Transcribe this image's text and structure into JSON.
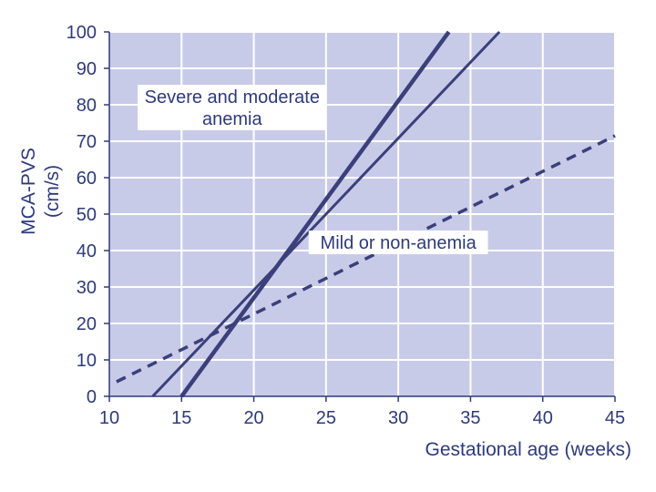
{
  "chart_data": {
    "type": "line",
    "xlabel": "Gestational age (weeks)",
    "ylabel": "MCA-PVS",
    "ylabel_unit": "(cm/s)",
    "xlim": [
      10,
      45
    ],
    "ylim": [
      0,
      100
    ],
    "x_ticks": [
      10,
      15,
      20,
      25,
      30,
      35,
      40,
      45
    ],
    "y_ticks": [
      0,
      10,
      20,
      30,
      40,
      50,
      60,
      70,
      80,
      90,
      100
    ],
    "grid": true,
    "plot_background": "#c8cbe8",
    "line_color": "#3b3f7a",
    "series": [
      {
        "style": "thick-solid",
        "x": [
          15,
          33.5
        ],
        "y": [
          0,
          100
        ]
      },
      {
        "style": "thin-solid",
        "x": [
          13,
          37
        ],
        "y": [
          0,
          100
        ]
      },
      {
        "style": "dashed",
        "x": [
          10.5,
          45
        ],
        "y": [
          4,
          71.5
        ]
      }
    ],
    "annotations": [
      {
        "lines": [
          "Severe and moderate",
          "anemia"
        ],
        "x": 18.5,
        "y": 80
      },
      {
        "lines": [
          "Mild or non-anemia"
        ],
        "x": 30,
        "y": 40
      }
    ]
  }
}
